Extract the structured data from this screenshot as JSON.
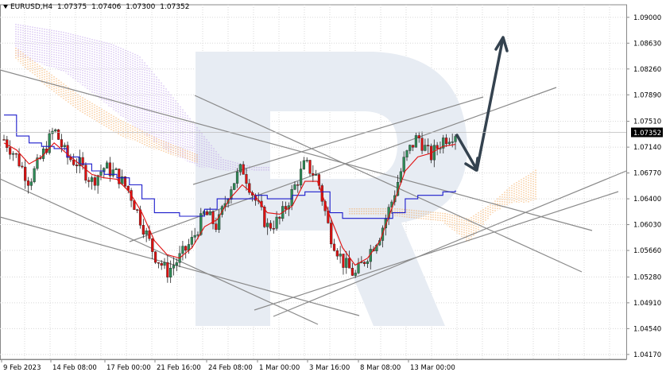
{
  "header": {
    "symbol": "EURUSD,H4",
    "open": "1.07375",
    "high": "1.07406",
    "low": "1.07300",
    "close": "1.07352"
  },
  "current_price": "1.07352",
  "price_axis": [
    "1.09000",
    "1.08630",
    "1.08260",
    "1.07890",
    "1.07510",
    "1.07140",
    "1.06770",
    "1.06400",
    "1.06030",
    "1.05660",
    "1.05280",
    "1.04910",
    "1.04540",
    "1.04170"
  ],
  "time_axis": [
    "9 Feb 2023",
    "14 Feb 08:00",
    "17 Feb 00:00",
    "21 Feb 16:00",
    "24 Feb 08:00",
    "1 Mar 00:00",
    "3 Mar 16:00",
    "8 Mar 08:00",
    "13 Mar 00:00"
  ],
  "colors": {
    "bull": "#2e8b57",
    "bear": "#dd1111",
    "tenkan": "#e01010",
    "kijun": "#1c1ccc",
    "cloud_bear": "#b590e6",
    "cloud_bull": "#f39a3c",
    "trendline": "#8a8a8a",
    "arrow": "#34424f",
    "watermark": "#e7ecf3",
    "price_label_bg": "#000000"
  },
  "chart_data": {
    "type": "candlestick",
    "indicator": "Ichimoku Kinko Hyo",
    "timeframe": "H4",
    "symbol": "EURUSD",
    "y_range": [
      1.041,
      1.0918
    ],
    "x": [
      "9 Feb 2023",
      "14 Feb 08:00",
      "17 Feb 00:00",
      "21 Feb 16:00",
      "24 Feb 08:00",
      "1 Mar 00:00",
      "3 Mar 16:00",
      "8 Mar 08:00",
      "13 Mar 00:00"
    ],
    "close_path": [
      1.0725,
      1.07,
      1.0665,
      1.07,
      1.074,
      1.07,
      1.069,
      1.0665,
      1.0685,
      1.0675,
      1.065,
      1.0605,
      1.056,
      1.0535,
      1.0555,
      1.058,
      1.062,
      1.06,
      1.0655,
      1.0685,
      1.064,
      1.06,
      1.061,
      1.065,
      1.069,
      1.067,
      1.059,
      1.055,
      1.053,
      1.056,
      1.059,
      1.064,
      1.07,
      1.073,
      1.07,
      1.0725,
      1.0735
    ],
    "tenkan": [
      1.072,
      1.071,
      1.069,
      1.07,
      1.072,
      1.0705,
      1.069,
      1.0675,
      1.067,
      1.0668,
      1.065,
      1.062,
      1.058,
      1.056,
      1.0555,
      1.057,
      1.06,
      1.061,
      1.064,
      1.066,
      1.0645,
      1.062,
      1.0618,
      1.063,
      1.0665,
      1.0665,
      1.0615,
      1.057,
      1.0545,
      1.0555,
      1.058,
      1.063,
      1.068,
      1.07,
      1.0705,
      1.0715,
      1.0718
    ],
    "kijun": [
      1.076,
      1.073,
      1.072,
      1.0715,
      1.0712,
      1.07,
      1.069,
      1.068,
      1.0675,
      1.067,
      1.066,
      1.064,
      1.062,
      1.062,
      1.0615,
      1.0615,
      1.0625,
      1.064,
      1.064,
      1.064,
      1.0645,
      1.064,
      1.064,
      1.0645,
      1.065,
      1.065,
      1.062,
      1.0612,
      1.0612,
      1.0612,
      1.0612,
      1.062,
      1.064,
      1.0645,
      1.0645,
      1.065,
      1.0652
    ],
    "last_price": 1.07352,
    "forecast": "rise"
  }
}
